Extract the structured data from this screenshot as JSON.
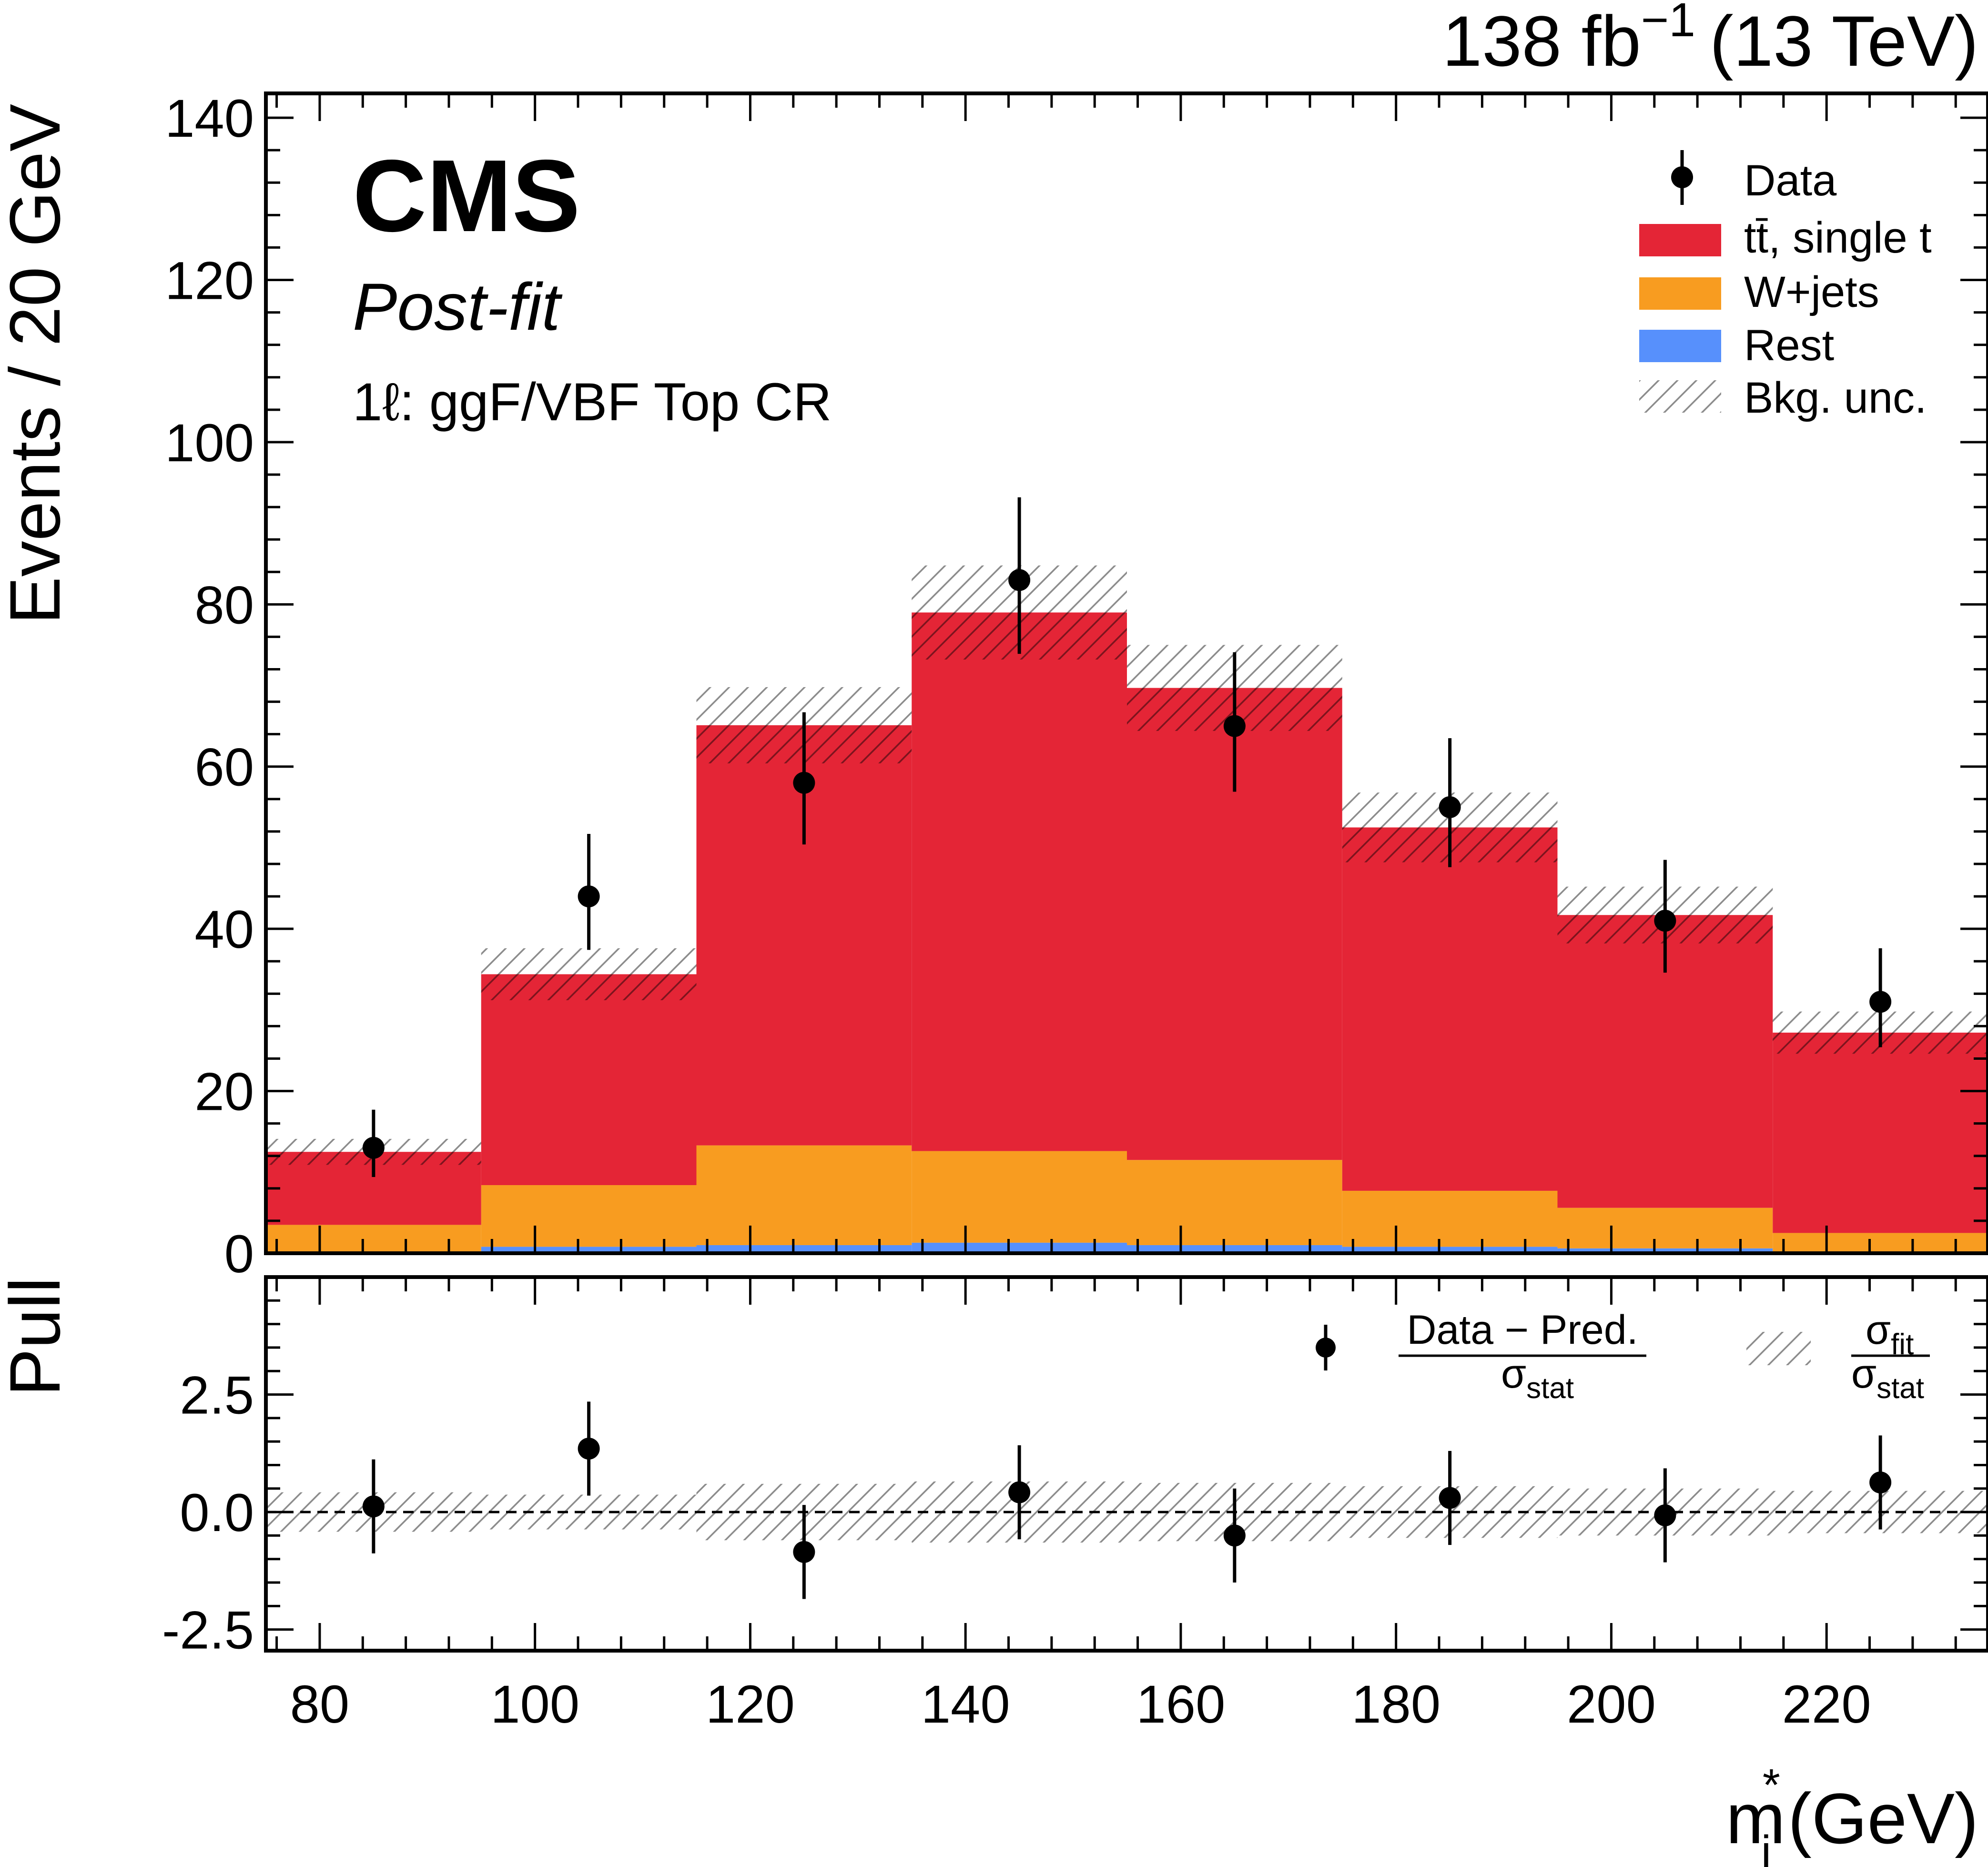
{
  "header": {
    "lumi_value": "138 fb",
    "lumi_exp": "−1",
    "energy": "(13 TeV)"
  },
  "labels": {
    "experiment": "CMS",
    "status": "Post-fit",
    "region": "1ℓ: ggF/VBF Top CR"
  },
  "colors": {
    "ttbar": "#e42536",
    "wjets": "#f89c20",
    "rest": "#5790fc",
    "hatch": "#8a8a8a",
    "data": "#000000"
  },
  "chart_data": {
    "type": "bar",
    "stacked": true,
    "bin_edges": [
      75,
      95,
      115,
      135,
      155,
      175,
      195,
      215,
      235
    ],
    "bin_centers": [
      85,
      105,
      125,
      145,
      165,
      185,
      205,
      225
    ],
    "xlabel": "m",
    "xlabel_sub": "j",
    "xlabel_sup": "*",
    "xlabel_unit": "(GeV)",
    "xlim": [
      75,
      235
    ],
    "xticks": [
      80,
      100,
      120,
      140,
      160,
      180,
      200,
      220
    ],
    "main": {
      "ylabel": "Events / 20 GeV",
      "ylim": [
        0,
        143
      ],
      "yticks": [
        0,
        20,
        40,
        60,
        80,
        100,
        120,
        140
      ],
      "series": [
        {
          "name": "Rest",
          "color": "#5790fc",
          "values": [
            0.1,
            0.8,
            1.0,
            1.3,
            1.0,
            0.8,
            0.6,
            0.1
          ]
        },
        {
          "name": "W+jets",
          "color": "#f89c20",
          "values": [
            3.4,
            7.6,
            12.3,
            11.3,
            10.5,
            6.9,
            5.0,
            2.4
          ]
        },
        {
          "name": "tt̄, single t",
          "color": "#e42536",
          "values": [
            9.0,
            26.0,
            51.8,
            66.4,
            58.2,
            44.8,
            36.1,
            24.7
          ]
        }
      ],
      "total": [
        12.5,
        34.4,
        65.1,
        79.0,
        69.7,
        52.5,
        41.7,
        27.2
      ],
      "unc": [
        1.6,
        3.2,
        4.7,
        5.8,
        5.3,
        4.3,
        3.5,
        2.6
      ],
      "data": {
        "name": "Data",
        "values": [
          13,
          44,
          58,
          83,
          65,
          55,
          41,
          31
        ],
        "err_low": [
          3.6,
          6.6,
          7.6,
          9.1,
          8.1,
          7.4,
          6.4,
          5.6
        ],
        "err_high": [
          4.7,
          7.7,
          8.7,
          10.2,
          9.1,
          8.5,
          7.5,
          6.6
        ]
      }
    },
    "ratio": {
      "ylabel": "Pull",
      "ylim": [
        -2.95,
        5.0
      ],
      "yticks": [
        -2.5,
        0.0,
        2.5
      ],
      "ytick_labels": [
        "-2.5",
        "0.0",
        "2.5"
      ],
      "pull": [
        0.12,
        1.35,
        -0.85,
        0.42,
        -0.5,
        0.3,
        -0.07,
        0.63
      ],
      "pull_err": [
        1.0,
        1.0,
        1.0,
        1.0,
        1.0,
        1.0,
        1.0,
        1.0
      ],
      "band_halfwidth": [
        0.42,
        0.37,
        0.6,
        0.65,
        0.62,
        0.55,
        0.5,
        0.45
      ]
    },
    "legend": {
      "placement": "top-right",
      "entries": [
        "Data",
        "tt̄, single t",
        "W+jets",
        "Rest",
        "Bkg. unc."
      ]
    },
    "ratio_legend": {
      "placement": "top-right",
      "pull_num": "Data − Pred.",
      "pull_den": "σ",
      "pull_den_sub": "stat",
      "band_num": "σ",
      "band_num_sub": "fit",
      "band_den": "σ",
      "band_den_sub": "stat"
    }
  }
}
